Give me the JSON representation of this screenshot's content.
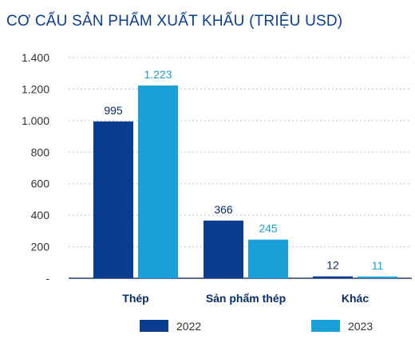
{
  "chart_data": {
    "type": "bar",
    "title": "CƠ CẤU SẢN PHẨM XUẤT KHẨU (TRIỆU USD)",
    "categories": [
      "Thép",
      "Sản phẩm thép",
      "Khác"
    ],
    "series": [
      {
        "name": "2022",
        "values": [
          995,
          366,
          12
        ],
        "labels": [
          "995",
          "366",
          "12"
        ],
        "color": "#0a3d8f"
      },
      {
        "name": "2023",
        "values": [
          1223,
          245,
          11
        ],
        "labels": [
          "1.223",
          "245",
          "11"
        ],
        "color": "#1aa0d8"
      }
    ],
    "yticks": [
      {
        "value": 1400,
        "label": "1.400"
      },
      {
        "value": 1200,
        "label": "1.200"
      },
      {
        "value": 1000,
        "label": "1.000"
      },
      {
        "value": 800,
        "label": "800"
      },
      {
        "value": 600,
        "label": "600"
      },
      {
        "value": 400,
        "label": "400"
      },
      {
        "value": 200,
        "label": "200"
      },
      {
        "value": 0,
        "label": "-"
      }
    ],
    "ylim": [
      0,
      1400
    ],
    "xlabel": "",
    "ylabel": "",
    "grid": true,
    "legend_position": "bottom"
  }
}
